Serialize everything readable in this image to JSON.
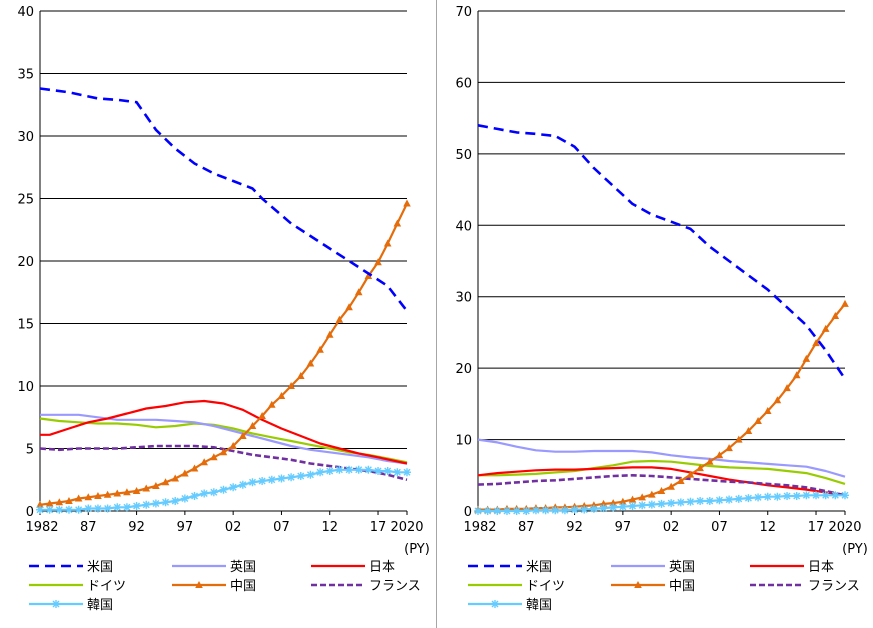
{
  "chart_data": [
    {
      "type": "line",
      "x_tick_labels": [
        "1982",
        "87",
        "92",
        "97",
        "02",
        "07",
        "12",
        "17",
        "2020"
      ],
      "x_unit_label": "(PY)",
      "ylim": [
        0,
        40
      ],
      "y_ticks": [
        "0",
        "5",
        "10",
        "15",
        "20",
        "25",
        "30",
        "35",
        "40"
      ],
      "grid": true,
      "legend_placement": "bottom",
      "series": [
        {
          "name": "米国",
          "color": "#0000ff",
          "style": "dashed",
          "marker": "none",
          "x": [
            1982,
            1985,
            1988,
            1990,
            1992,
            1994,
            1996,
            1998,
            2000,
            2002,
            2004,
            2005,
            2008,
            2010,
            2012,
            2014,
            2016,
            2018,
            2020
          ],
          "values": [
            33.8,
            33.5,
            33.0,
            32.9,
            32.7,
            30.5,
            29.0,
            27.8,
            27.0,
            26.4,
            25.8,
            25.0,
            23.0,
            22.0,
            21.0,
            20.0,
            19.0,
            18.0,
            16.0
          ]
        },
        {
          "name": "英国",
          "color": "#9999ff",
          "style": "solid",
          "marker": "none",
          "x": [
            1982,
            1984,
            1986,
            1988,
            1990,
            1992,
            1994,
            1996,
            1998,
            2000,
            2002,
            2004,
            2006,
            2008,
            2010,
            2012,
            2014,
            2016,
            2018,
            2020
          ],
          "values": [
            7.7,
            7.7,
            7.7,
            7.5,
            7.3,
            7.3,
            7.3,
            7.2,
            7.1,
            6.8,
            6.4,
            6.0,
            5.6,
            5.2,
            4.9,
            4.7,
            4.5,
            4.3,
            4.0,
            3.8
          ]
        },
        {
          "name": "日本",
          "color": "#ff0000",
          "style": "solid",
          "marker": "none",
          "x": [
            1982,
            1983,
            1985,
            1987,
            1989,
            1991,
            1993,
            1995,
            1997,
            1999,
            2001,
            2003,
            2005,
            2007,
            2009,
            2011,
            2013,
            2015,
            2017,
            2020
          ],
          "values": [
            6.1,
            6.1,
            6.6,
            7.1,
            7.4,
            7.8,
            8.2,
            8.4,
            8.7,
            8.8,
            8.6,
            8.1,
            7.3,
            6.6,
            6.0,
            5.4,
            5.0,
            4.6,
            4.3,
            3.8
          ]
        },
        {
          "name": "ドイツ",
          "color": "#99cc00",
          "style": "solid",
          "marker": "none",
          "x": [
            1982,
            1984,
            1986,
            1988,
            1990,
            1992,
            1994,
            1996,
            1998,
            2000,
            2002,
            2004,
            2006,
            2008,
            2010,
            2012,
            2014,
            2016,
            2018,
            2020
          ],
          "values": [
            7.4,
            7.2,
            7.1,
            7.0,
            7.0,
            6.9,
            6.7,
            6.8,
            7.0,
            6.9,
            6.6,
            6.2,
            5.9,
            5.6,
            5.3,
            5.0,
            4.7,
            4.5,
            4.2,
            3.9
          ]
        },
        {
          "name": "中国",
          "color": "#e46c0a",
          "style": "solid",
          "marker": "triangle",
          "x": [
            1982,
            1983,
            1984,
            1985,
            1986,
            1987,
            1988,
            1989,
            1990,
            1991,
            1992,
            1993,
            1994,
            1995,
            1996,
            1997,
            1998,
            1999,
            2000,
            2001,
            2002,
            2003,
            2004,
            2005,
            2006,
            2007,
            2008,
            2009,
            2010,
            2011,
            2012,
            2013,
            2014,
            2015,
            2016,
            2017,
            2018,
            2019,
            2020
          ],
          "values": [
            0.5,
            0.6,
            0.7,
            0.8,
            1.0,
            1.1,
            1.2,
            1.3,
            1.4,
            1.5,
            1.6,
            1.8,
            2.0,
            2.3,
            2.6,
            3.0,
            3.4,
            3.9,
            4.3,
            4.7,
            5.2,
            6.0,
            6.8,
            7.6,
            8.5,
            9.2,
            10.0,
            10.8,
            11.8,
            12.9,
            14.1,
            15.3,
            16.3,
            17.5,
            18.8,
            19.9,
            21.4,
            23.0,
            24.6
          ]
        },
        {
          "name": "フランス",
          "color": "#7030a0",
          "style": "dashed",
          "marker": "none",
          "x": [
            1982,
            1984,
            1986,
            1988,
            1990,
            1992,
            1994,
            1996,
            1998,
            2000,
            2002,
            2004,
            2006,
            2008,
            2010,
            2012,
            2014,
            2016,
            2018,
            2020
          ],
          "values": [
            5.0,
            4.9,
            5.0,
            5.0,
            5.0,
            5.1,
            5.2,
            5.2,
            5.2,
            5.1,
            4.8,
            4.5,
            4.3,
            4.1,
            3.8,
            3.6,
            3.4,
            3.2,
            2.9,
            2.5
          ]
        },
        {
          "name": "韓国",
          "color": "#66ccff",
          "style": "solid",
          "marker": "star",
          "x": [
            1982,
            1983,
            1984,
            1985,
            1986,
            1987,
            1988,
            1989,
            1990,
            1991,
            1992,
            1993,
            1994,
            1995,
            1996,
            1997,
            1998,
            1999,
            2000,
            2001,
            2002,
            2003,
            2004,
            2005,
            2006,
            2007,
            2008,
            2009,
            2010,
            2011,
            2012,
            2013,
            2014,
            2015,
            2016,
            2017,
            2018,
            2019,
            2020
          ],
          "values": [
            0.1,
            0.1,
            0.1,
            0.1,
            0.1,
            0.2,
            0.2,
            0.2,
            0.3,
            0.3,
            0.4,
            0.5,
            0.6,
            0.7,
            0.8,
            1.0,
            1.2,
            1.4,
            1.5,
            1.7,
            1.9,
            2.1,
            2.3,
            2.4,
            2.5,
            2.6,
            2.7,
            2.8,
            2.9,
            3.1,
            3.2,
            3.3,
            3.3,
            3.3,
            3.3,
            3.2,
            3.2,
            3.1,
            3.1
          ]
        }
      ]
    },
    {
      "type": "line",
      "x_tick_labels": [
        "1982",
        "87",
        "92",
        "97",
        "02",
        "07",
        "12",
        "17",
        "2020"
      ],
      "x_unit_label": "(PY)",
      "ylim": [
        0,
        70
      ],
      "y_ticks": [
        "0",
        "10",
        "20",
        "30",
        "40",
        "50",
        "60",
        "70"
      ],
      "grid": true,
      "legend_placement": "bottom",
      "series": [
        {
          "name": "米国",
          "color": "#0000ff",
          "style": "dashed",
          "marker": "none",
          "x": [
            1982,
            1984,
            1986,
            1988,
            1990,
            1992,
            1994,
            1996,
            1998,
            2000,
            2002,
            2004,
            2006,
            2008,
            2010,
            2012,
            2014,
            2016,
            2018,
            2020
          ],
          "values": [
            54.0,
            53.5,
            53.0,
            52.8,
            52.5,
            51.0,
            48.0,
            45.5,
            43.0,
            41.5,
            40.5,
            39.5,
            37.0,
            35.0,
            33.0,
            31.0,
            28.5,
            26.0,
            22.5,
            18.5
          ]
        },
        {
          "name": "英国",
          "color": "#9999ff",
          "style": "solid",
          "marker": "none",
          "x": [
            1982,
            1984,
            1986,
            1988,
            1990,
            1992,
            1994,
            1996,
            1998,
            2000,
            2002,
            2004,
            2006,
            2008,
            2010,
            2012,
            2014,
            2016,
            2018,
            2020
          ],
          "values": [
            10.0,
            9.6,
            9.0,
            8.5,
            8.3,
            8.3,
            8.4,
            8.4,
            8.4,
            8.2,
            7.8,
            7.5,
            7.3,
            7.0,
            6.8,
            6.6,
            6.4,
            6.2,
            5.6,
            4.8
          ]
        },
        {
          "name": "日本",
          "color": "#ff0000",
          "style": "solid",
          "marker": "none",
          "x": [
            1982,
            1984,
            1986,
            1988,
            1990,
            1992,
            1994,
            1996,
            1998,
            2000,
            2002,
            2004,
            2006,
            2008,
            2010,
            2012,
            2014,
            2016,
            2018,
            2020
          ],
          "values": [
            5.0,
            5.3,
            5.5,
            5.7,
            5.8,
            5.8,
            5.9,
            6.0,
            6.1,
            6.1,
            5.9,
            5.4,
            4.9,
            4.4,
            4.0,
            3.6,
            3.3,
            3.0,
            2.6,
            2.2
          ]
        },
        {
          "name": "ドイツ",
          "color": "#99cc00",
          "style": "solid",
          "marker": "none",
          "x": [
            1982,
            1984,
            1986,
            1988,
            1990,
            1992,
            1994,
            1996,
            1998,
            2000,
            2002,
            2004,
            2006,
            2008,
            2010,
            2012,
            2014,
            2016,
            2018,
            2020
          ],
          "values": [
            5.0,
            5.0,
            5.1,
            5.2,
            5.4,
            5.6,
            6.0,
            6.4,
            6.9,
            7.0,
            6.9,
            6.6,
            6.3,
            6.1,
            6.0,
            5.9,
            5.6,
            5.3,
            4.6,
            3.8
          ]
        },
        {
          "name": "中国",
          "color": "#e46c0a",
          "style": "solid",
          "marker": "triangle",
          "x": [
            1982,
            1983,
            1984,
            1985,
            1986,
            1987,
            1988,
            1989,
            1990,
            1991,
            1992,
            1993,
            1994,
            1995,
            1996,
            1997,
            1998,
            1999,
            2000,
            2001,
            2002,
            2003,
            2004,
            2005,
            2006,
            2007,
            2008,
            2009,
            2010,
            2011,
            2012,
            2013,
            2014,
            2015,
            2016,
            2017,
            2018,
            2019,
            2020
          ],
          "values": [
            0.2,
            0.2,
            0.2,
            0.3,
            0.3,
            0.3,
            0.4,
            0.4,
            0.5,
            0.5,
            0.6,
            0.7,
            0.8,
            1.0,
            1.1,
            1.3,
            1.6,
            1.9,
            2.3,
            2.8,
            3.4,
            4.2,
            5.1,
            6.0,
            6.9,
            7.8,
            8.8,
            10.0,
            11.2,
            12.6,
            14.0,
            15.5,
            17.2,
            19.0,
            21.3,
            23.5,
            25.5,
            27.3,
            29.0
          ]
        },
        {
          "name": "フランス",
          "color": "#7030a0",
          "style": "dashed",
          "marker": "none",
          "x": [
            1982,
            1984,
            1986,
            1988,
            1990,
            1992,
            1994,
            1996,
            1998,
            2000,
            2002,
            2004,
            2006,
            2008,
            2010,
            2012,
            2014,
            2016,
            2018,
            2020
          ],
          "values": [
            3.7,
            3.8,
            4.0,
            4.2,
            4.3,
            4.5,
            4.7,
            4.9,
            5.0,
            4.9,
            4.7,
            4.5,
            4.3,
            4.1,
            4.0,
            3.8,
            3.6,
            3.3,
            2.8,
            2.2
          ]
        },
        {
          "name": "韓国",
          "color": "#66ccff",
          "style": "solid",
          "marker": "star",
          "x": [
            1982,
            1983,
            1984,
            1985,
            1986,
            1987,
            1988,
            1989,
            1990,
            1991,
            1992,
            1993,
            1994,
            1995,
            1996,
            1997,
            1998,
            1999,
            2000,
            2001,
            2002,
            2003,
            2004,
            2005,
            2006,
            2007,
            2008,
            2009,
            2010,
            2011,
            2012,
            2013,
            2014,
            2015,
            2016,
            2017,
            2018,
            2019,
            2020
          ],
          "values": [
            0.0,
            0.0,
            0.0,
            0.0,
            0.0,
            0.0,
            0.1,
            0.1,
            0.1,
            0.1,
            0.2,
            0.2,
            0.3,
            0.4,
            0.5,
            0.6,
            0.7,
            0.8,
            0.9,
            1.0,
            1.1,
            1.2,
            1.3,
            1.4,
            1.4,
            1.5,
            1.6,
            1.7,
            1.8,
            1.9,
            2.0,
            2.0,
            2.1,
            2.1,
            2.2,
            2.2,
            2.2,
            2.2,
            2.2
          ]
        }
      ]
    }
  ]
}
